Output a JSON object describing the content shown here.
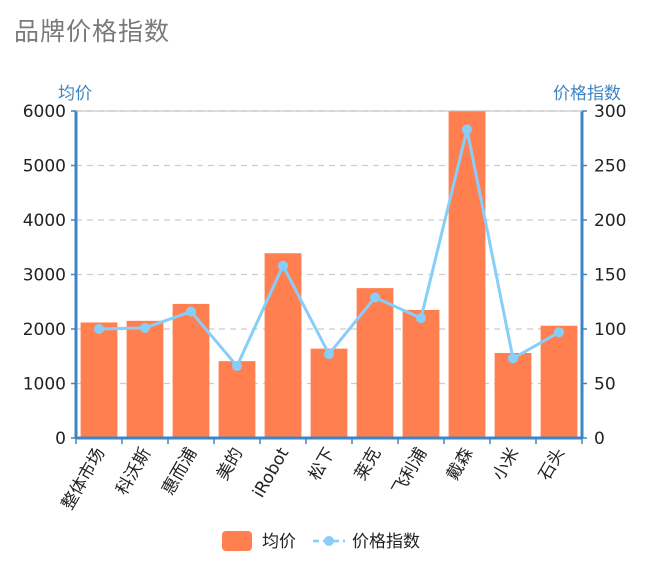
{
  "title": "品牌价格指数",
  "colors": {
    "bar": "#ff7f50",
    "line": "#87cefa",
    "axis": "#3d86c6",
    "grid": "#cccccc",
    "title": "#7a7a7a"
  },
  "chart_data": {
    "type": "bar",
    "title": "品牌价格指数",
    "categories": [
      "整体市场",
      "科沃斯",
      "惠而浦",
      "美的",
      "iRobot",
      "松下",
      "莱克",
      "飞利浦",
      "戴森",
      "小米",
      "石头"
    ],
    "series": [
      {
        "name": "均价",
        "type": "bar",
        "axis": "left",
        "values": [
          2120,
          2150,
          2460,
          1410,
          3390,
          1640,
          2750,
          2350,
          6000,
          1560,
          2060
        ]
      },
      {
        "name": "价格指数",
        "type": "line",
        "axis": "right",
        "values": [
          100,
          101,
          116,
          66,
          158,
          77,
          129,
          110,
          283,
          73,
          97
        ]
      }
    ],
    "y_left": {
      "label": "均价",
      "range": [
        0,
        6000
      ],
      "ticks": [
        0,
        1000,
        2000,
        3000,
        4000,
        5000,
        6000
      ]
    },
    "y_right": {
      "label": "价格指数",
      "range": [
        0,
        300
      ],
      "ticks": [
        0,
        50,
        100,
        150,
        200,
        250,
        300
      ]
    },
    "grid": true,
    "legend": "bottom-center"
  }
}
